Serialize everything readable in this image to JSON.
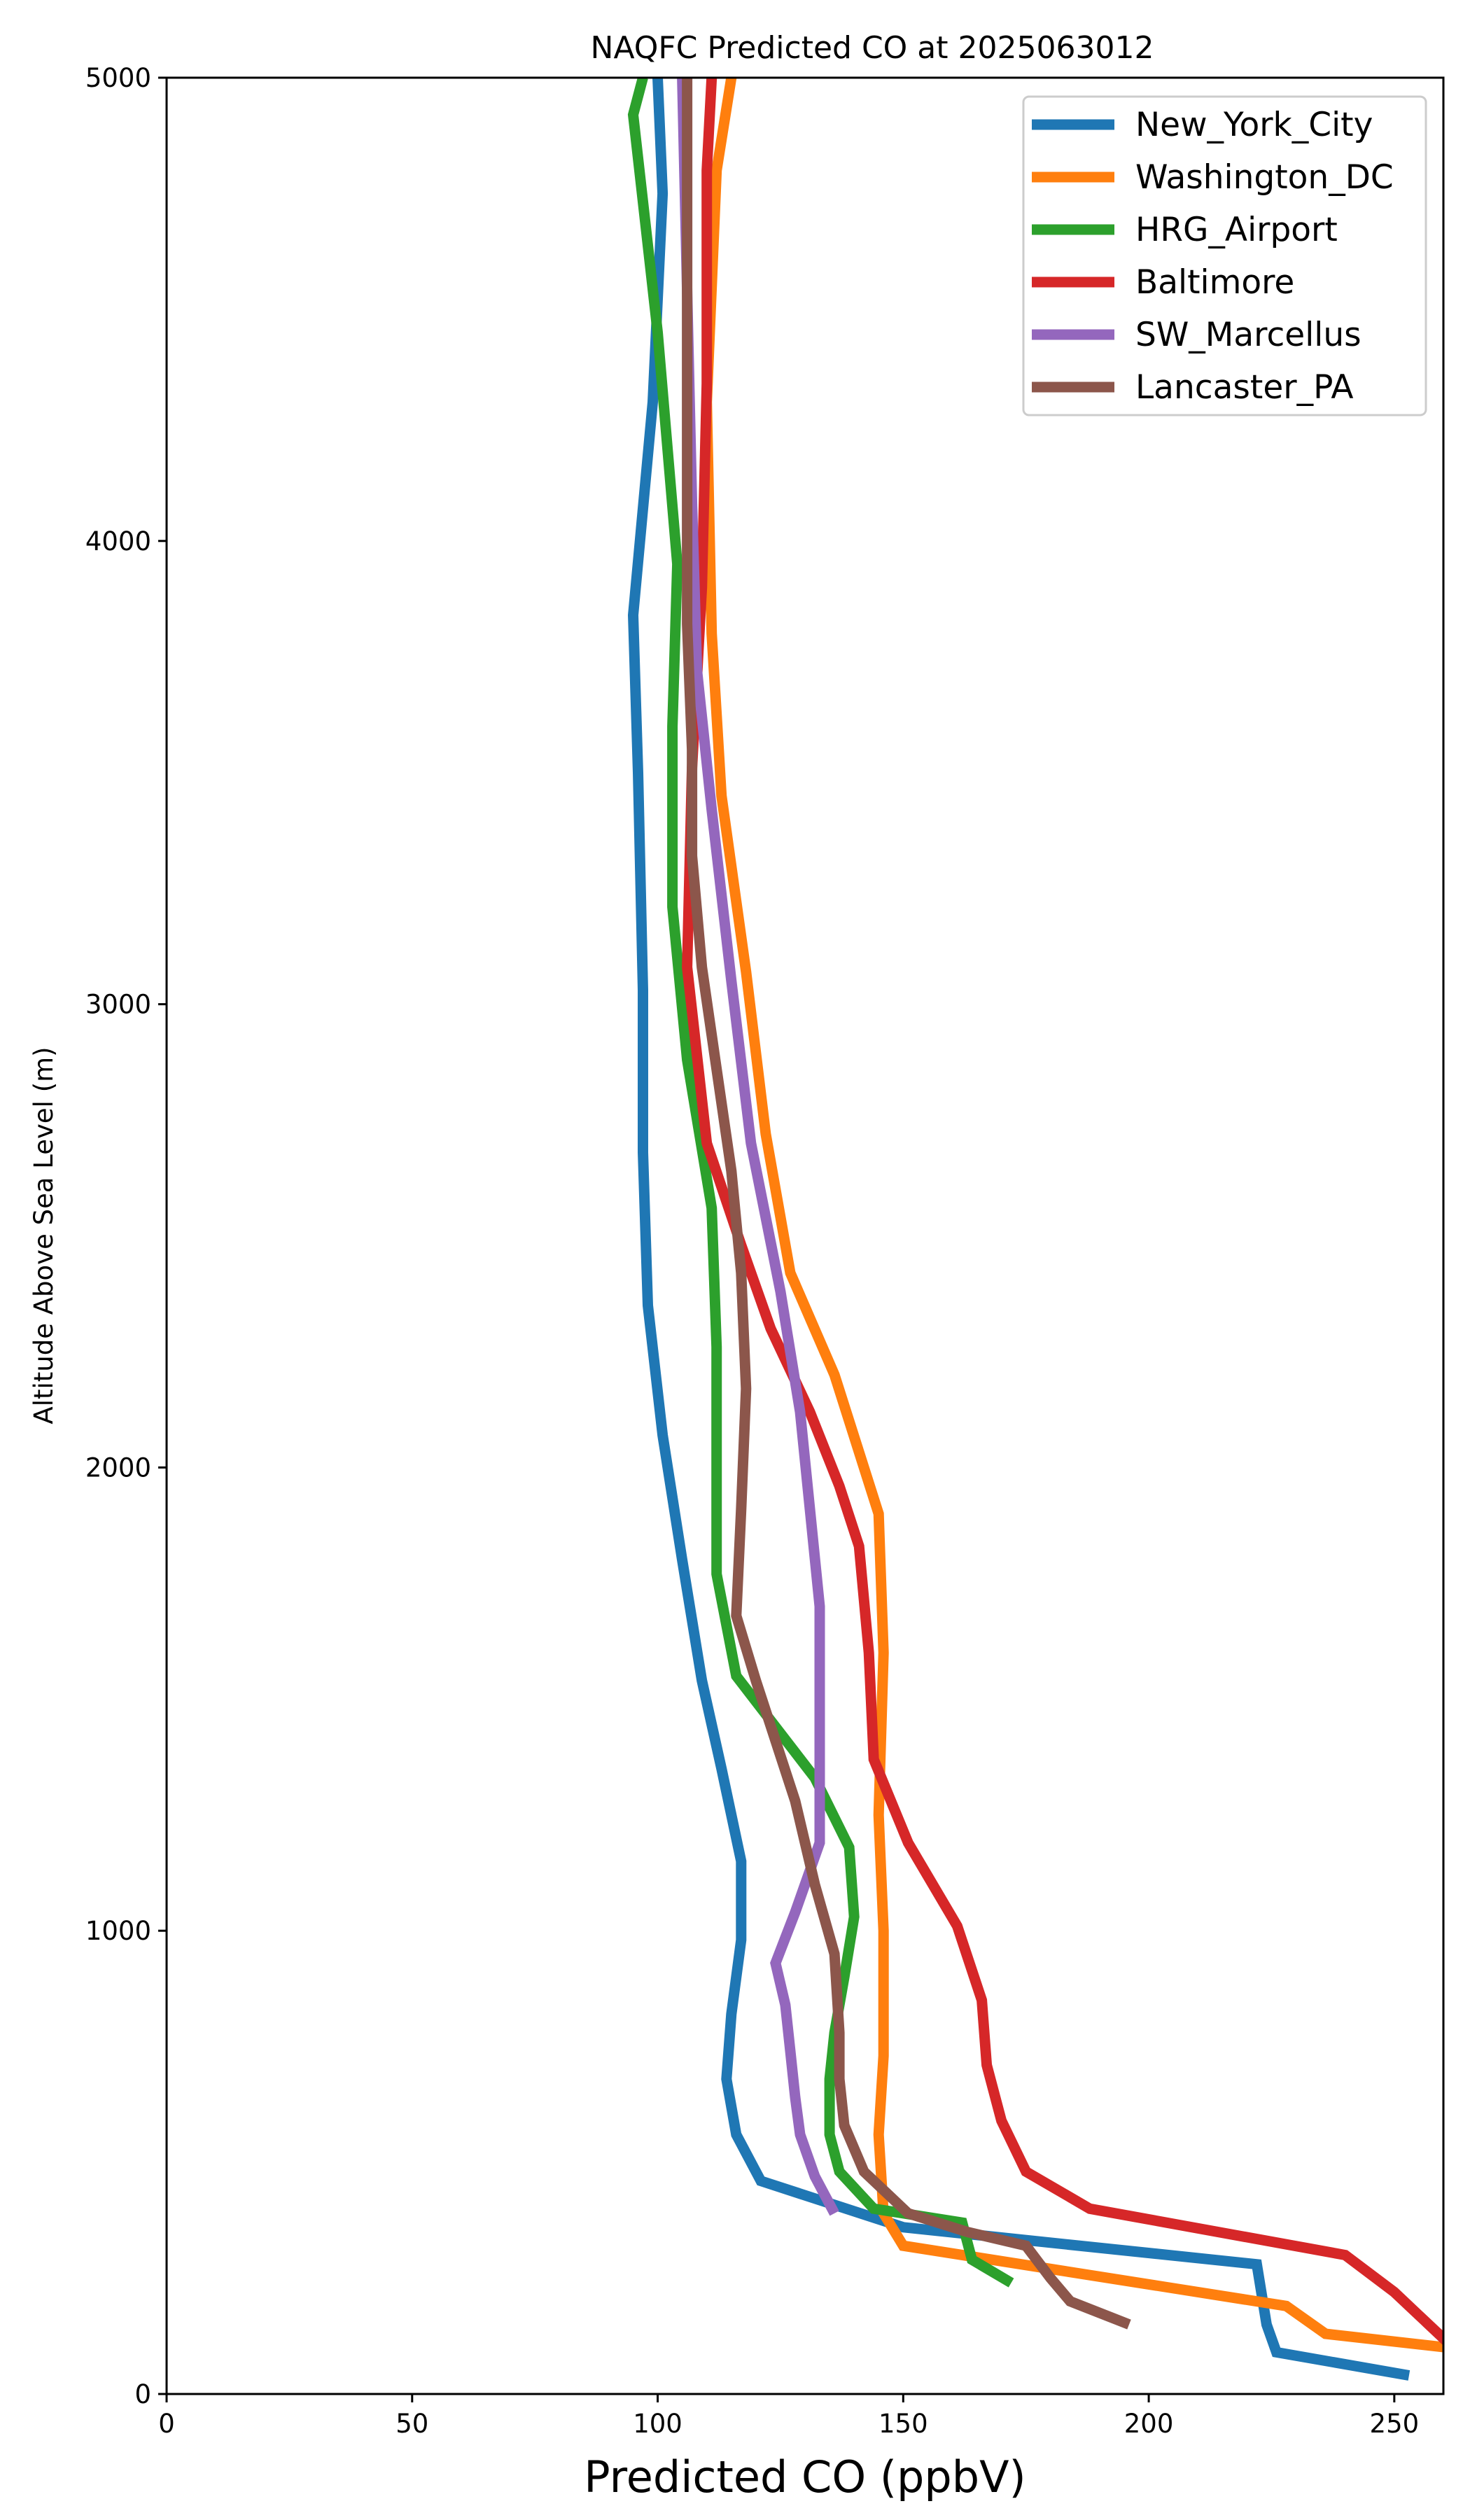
{
  "chart_data": {
    "type": "line",
    "title": "NAQFC Predicted CO at 2025063012",
    "xlabel": "Predicted CO (ppbV)",
    "ylabel": "Altitude Above Sea Level (m)",
    "xlim": [
      0,
      260
    ],
    "ylim": [
      0,
      5000
    ],
    "xticks": [
      0,
      50,
      100,
      150,
      200,
      250
    ],
    "yticks": [
      0,
      1000,
      2000,
      3000,
      4000,
      5000
    ],
    "grid": false,
    "legend_position": "top-right",
    "series": [
      {
        "name": "New_York_City",
        "color": "#1f77b4",
        "points": [
          [
            253,
            40
          ],
          [
            226,
            90
          ],
          [
            224,
            150
          ],
          [
            222,
            280
          ],
          [
            150,
            360
          ],
          [
            121,
            460
          ],
          [
            116,
            560
          ],
          [
            114,
            680
          ],
          [
            115,
            820
          ],
          [
            117,
            980
          ],
          [
            117,
            1150
          ],
          [
            113,
            1350
          ],
          [
            109,
            1540
          ],
          [
            105,
            1800
          ],
          [
            101,
            2070
          ],
          [
            98,
            2350
          ],
          [
            97,
            2680
          ],
          [
            97,
            3030
          ],
          [
            96,
            3500
          ],
          [
            95,
            3840
          ],
          [
            99,
            4300
          ],
          [
            101,
            4750
          ],
          [
            100,
            5000
          ]
        ]
      },
      {
        "name": "Washington_DC",
        "color": "#ff7f0e",
        "points": [
          [
            261,
            100
          ],
          [
            236,
            130
          ],
          [
            228,
            190
          ],
          [
            150,
            320
          ],
          [
            146,
            390
          ],
          [
            145,
            560
          ],
          [
            146,
            730
          ],
          [
            146,
            1000
          ],
          [
            145,
            1250
          ],
          [
            146,
            1600
          ],
          [
            145,
            1900
          ],
          [
            136,
            2200
          ],
          [
            127,
            2420
          ],
          [
            122,
            2720
          ],
          [
            118,
            3070
          ],
          [
            113,
            3450
          ],
          [
            111,
            3800
          ],
          [
            110,
            4300
          ],
          [
            112,
            4800
          ],
          [
            115,
            5000
          ]
        ]
      },
      {
        "name": "HRG_Airport",
        "color": "#2ca02c",
        "points": [
          [
            172,
            240
          ],
          [
            164,
            290
          ],
          [
            162,
            370
          ],
          [
            144,
            400
          ],
          [
            137,
            480
          ],
          [
            135,
            560
          ],
          [
            135,
            680
          ],
          [
            136,
            780
          ],
          [
            138,
            900
          ],
          [
            140,
            1030
          ],
          [
            139,
            1180
          ],
          [
            132,
            1330
          ],
          [
            116,
            1550
          ],
          [
            112,
            1770
          ],
          [
            112,
            2000
          ],
          [
            112,
            2260
          ],
          [
            111,
            2560
          ],
          [
            106,
            2880
          ],
          [
            103,
            3210
          ],
          [
            103,
            3600
          ],
          [
            104,
            3950
          ],
          [
            100,
            4450
          ],
          [
            95,
            4920
          ],
          [
            97,
            5000
          ]
        ]
      },
      {
        "name": "Baltimore",
        "color": "#d62728",
        "points": [
          [
            262,
            100
          ],
          [
            256,
            160
          ],
          [
            250,
            220
          ],
          [
            240,
            300
          ],
          [
            188,
            400
          ],
          [
            175,
            480
          ],
          [
            170,
            590
          ],
          [
            167,
            710
          ],
          [
            166,
            850
          ],
          [
            161,
            1010
          ],
          [
            151,
            1190
          ],
          [
            144,
            1370
          ],
          [
            143,
            1600
          ],
          [
            141,
            1830
          ],
          [
            137,
            1960
          ],
          [
            131,
            2120
          ],
          [
            123,
            2300
          ],
          [
            117,
            2480
          ],
          [
            110,
            2700
          ],
          [
            106,
            3080
          ],
          [
            107,
            3510
          ],
          [
            109,
            3900
          ],
          [
            110,
            4340
          ],
          [
            110,
            4800
          ],
          [
            111,
            5000
          ]
        ]
      },
      {
        "name": "SW_Marcellus",
        "color": "#9467bd",
        "points": [
          [
            136,
            390
          ],
          [
            132,
            470
          ],
          [
            129,
            560
          ],
          [
            128,
            640
          ],
          [
            127,
            740
          ],
          [
            126,
            840
          ],
          [
            124,
            930
          ],
          [
            128,
            1040
          ],
          [
            133,
            1190
          ],
          [
            133,
            1450
          ],
          [
            133,
            1700
          ],
          [
            131,
            1910
          ],
          [
            129,
            2120
          ],
          [
            125,
            2380
          ],
          [
            119,
            2700
          ],
          [
            115,
            3050
          ],
          [
            111,
            3420
          ],
          [
            108,
            3720
          ],
          [
            107,
            4080
          ],
          [
            106,
            4540
          ],
          [
            105,
            5000
          ]
        ]
      },
      {
        "name": "Lancaster_PA",
        "color": "#8c564b",
        "points": [
          [
            196,
            150
          ],
          [
            184,
            200
          ],
          [
            180,
            250
          ],
          [
            175,
            320
          ],
          [
            163,
            350
          ],
          [
            151,
            390
          ],
          [
            142,
            480
          ],
          [
            138,
            580
          ],
          [
            137,
            680
          ],
          [
            137,
            780
          ],
          [
            136,
            950
          ],
          [
            132,
            1100
          ],
          [
            128,
            1280
          ],
          [
            120,
            1540
          ],
          [
            116,
            1680
          ],
          [
            117,
            1910
          ],
          [
            118,
            2170
          ],
          [
            117,
            2420
          ],
          [
            115,
            2640
          ],
          [
            112,
            2860
          ],
          [
            109,
            3080
          ],
          [
            107,
            3320
          ],
          [
            107,
            3550
          ],
          [
            106,
            3820
          ],
          [
            106,
            4280
          ],
          [
            106,
            4700
          ],
          [
            106,
            5000
          ]
        ]
      }
    ]
  }
}
